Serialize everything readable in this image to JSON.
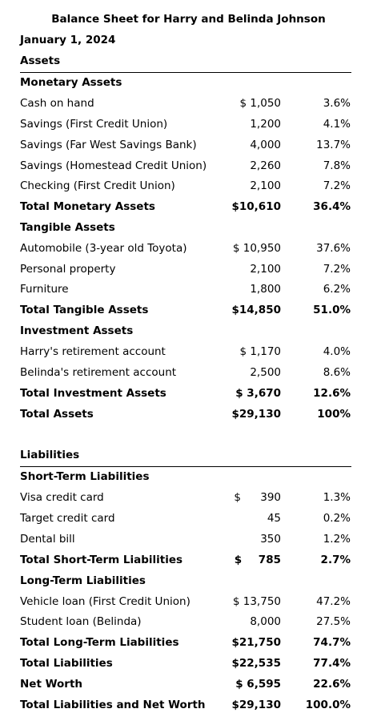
{
  "title": "Balance Sheet for Harry and Belinda Johnson",
  "date": "January 1, 2024",
  "assets": {
    "heading": "Assets",
    "groups": [
      {
        "heading": "Monetary Assets",
        "rows": [
          {
            "label": "Cash on hand",
            "amount": "$ 1,050",
            "pct": "3.6%"
          },
          {
            "label": "Savings (First Credit Union)",
            "amount": "1,200",
            "pct": "4.1%"
          },
          {
            "label": "Savings (Far West Savings Bank)",
            "amount": "4,000",
            "pct": "13.7%"
          },
          {
            "label": "Savings (Homestead Credit Union)",
            "amount": "2,260",
            "pct": "7.8%"
          },
          {
            "label": "Checking (First Credit Union)",
            "amount": "2,100",
            "pct": "7.2%"
          }
        ],
        "total": {
          "label": "Total Monetary Assets",
          "amount": "$10,610",
          "pct": "36.4%"
        }
      },
      {
        "heading": "Tangible Assets",
        "rows": [
          {
            "label": "Automobile (3-year old Toyota)",
            "amount": "$ 10,950",
            "pct": "37.6%"
          },
          {
            "label": "Personal property",
            "amount": "2,100",
            "pct": "7.2%"
          },
          {
            "label": "Furniture",
            "amount": "1,800",
            "pct": "6.2%"
          }
        ],
        "total": {
          "label": "Total Tangible Assets",
          "amount": "$14,850",
          "pct": "51.0%"
        }
      },
      {
        "heading": "Investment Assets",
        "rows": [
          {
            "label": "Harry's retirement account",
            "amount": "$ 1,170",
            "pct": "4.0%"
          },
          {
            "label": "Belinda's retirement account",
            "amount": "2,500",
            "pct": "8.6%"
          }
        ],
        "total": {
          "label": "Total Investment Assets",
          "amount": "$ 3,670",
          "pct": "12.6%"
        }
      }
    ],
    "total": {
      "label": "Total Assets",
      "amount": "$29,130",
      "pct": "100%"
    }
  },
  "liabilities": {
    "heading": "Liabilities",
    "groups": [
      {
        "heading": "Short-Term Liabilities",
        "rows": [
          {
            "label": "Visa credit card",
            "amount": "$ 390",
            "pct": "1.3%"
          },
          {
            "label": "Target credit card",
            "amount": "45",
            "pct": "0.2%"
          },
          {
            "label": "Dental bill",
            "amount": "350",
            "pct": "1.2%"
          }
        ],
        "total": {
          "label": "Total Short-Term Liabilities",
          "amount": "$ 785",
          "pct": "2.7%"
        }
      },
      {
        "heading": "Long-Term Liabilities",
        "rows": [
          {
            "label": "Vehicle loan (First Credit Union)",
            "amount": "$ 13,750",
            "pct": "47.2%"
          },
          {
            "label": "Student loan (Belinda)",
            "amount": "8,000",
            "pct": "27.5%"
          }
        ],
        "total": {
          "label": "Total Long-Term Liabilities",
          "amount": "$21,750",
          "pct": "74.7%"
        }
      }
    ],
    "total": {
      "label": "Total Liabilities",
      "amount": "$22,535",
      "pct": "77.4%"
    }
  },
  "net_worth": {
    "label": "Net Worth",
    "amount": "$ 6,595",
    "pct": "22.6%"
  },
  "grand_total": {
    "label": "Total Liabilities and Net Worth",
    "amount": "$29,130",
    "pct": "100.0%"
  }
}
